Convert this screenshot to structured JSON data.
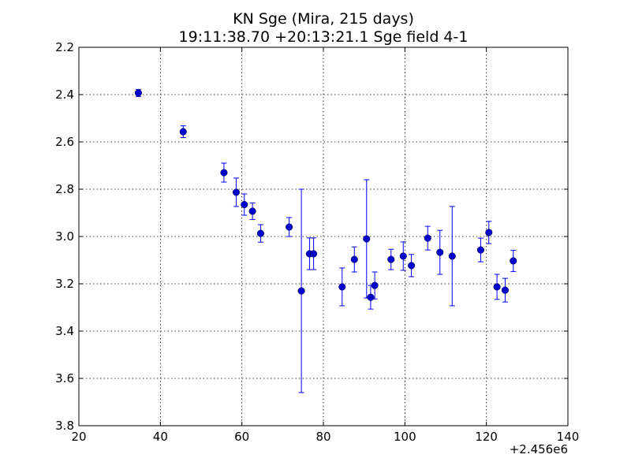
{
  "chart_data": {
    "type": "scatter",
    "title_lines": [
      "KN Sge (Mira, 215 days)",
      "19:11:38.70 +20:13:21.1 Sge field 4-1"
    ],
    "xlabel": "",
    "ylabel": "",
    "x_offset_label": "+2.456e6",
    "xlim": [
      20,
      140
    ],
    "ylim": [
      3.8,
      2.2
    ],
    "y_inverted": true,
    "grid": true,
    "legend": "none",
    "x_ticks": [
      20,
      40,
      60,
      80,
      100,
      120,
      140
    ],
    "x_tick_labels": [
      "20",
      "40",
      "60",
      "80",
      "100",
      "120",
      "140"
    ],
    "y_ticks": [
      2.2,
      2.4,
      2.6,
      2.8,
      3.0,
      3.2,
      3.4,
      3.6,
      3.8
    ],
    "y_tick_labels": [
      "2.2",
      "2.4",
      "2.6",
      "2.8",
      "3.0",
      "3.2",
      "3.4",
      "3.6",
      "3.8"
    ],
    "marker_color": "#0000cc",
    "errorbar_color": "#0000ff",
    "points": [
      {
        "x": 34.6,
        "y": 2.393,
        "err": 0.015
      },
      {
        "x": 45.6,
        "y": 2.557,
        "err": 0.025
      },
      {
        "x": 55.6,
        "y": 2.73,
        "err": 0.04
      },
      {
        "x": 58.6,
        "y": 2.813,
        "err": 0.06
      },
      {
        "x": 60.6,
        "y": 2.865,
        "err": 0.045
      },
      {
        "x": 62.6,
        "y": 2.893,
        "err": 0.035
      },
      {
        "x": 64.6,
        "y": 2.987,
        "err": 0.037
      },
      {
        "x": 71.6,
        "y": 2.96,
        "err": 0.04
      },
      {
        "x": 74.6,
        "y": 3.23,
        "err": 0.43
      },
      {
        "x": 76.6,
        "y": 3.073,
        "err": 0.067
      },
      {
        "x": 77.6,
        "y": 3.073,
        "err": 0.067
      },
      {
        "x": 84.6,
        "y": 3.213,
        "err": 0.08
      },
      {
        "x": 87.6,
        "y": 3.097,
        "err": 0.053
      },
      {
        "x": 90.6,
        "y": 3.01,
        "err": 0.25
      },
      {
        "x": 91.6,
        "y": 3.257,
        "err": 0.05
      },
      {
        "x": 92.6,
        "y": 3.207,
        "err": 0.057
      },
      {
        "x": 96.6,
        "y": 3.097,
        "err": 0.043
      },
      {
        "x": 99.6,
        "y": 3.083,
        "err": 0.06
      },
      {
        "x": 101.6,
        "y": 3.123,
        "err": 0.047
      },
      {
        "x": 105.6,
        "y": 3.007,
        "err": 0.05
      },
      {
        "x": 108.6,
        "y": 3.067,
        "err": 0.093
      },
      {
        "x": 111.6,
        "y": 3.083,
        "err": 0.21
      },
      {
        "x": 118.6,
        "y": 3.057,
        "err": 0.05
      },
      {
        "x": 120.6,
        "y": 2.983,
        "err": 0.047
      },
      {
        "x": 122.6,
        "y": 3.213,
        "err": 0.053
      },
      {
        "x": 124.6,
        "y": 3.227,
        "err": 0.05
      },
      {
        "x": 126.6,
        "y": 3.103,
        "err": 0.045
      }
    ]
  }
}
